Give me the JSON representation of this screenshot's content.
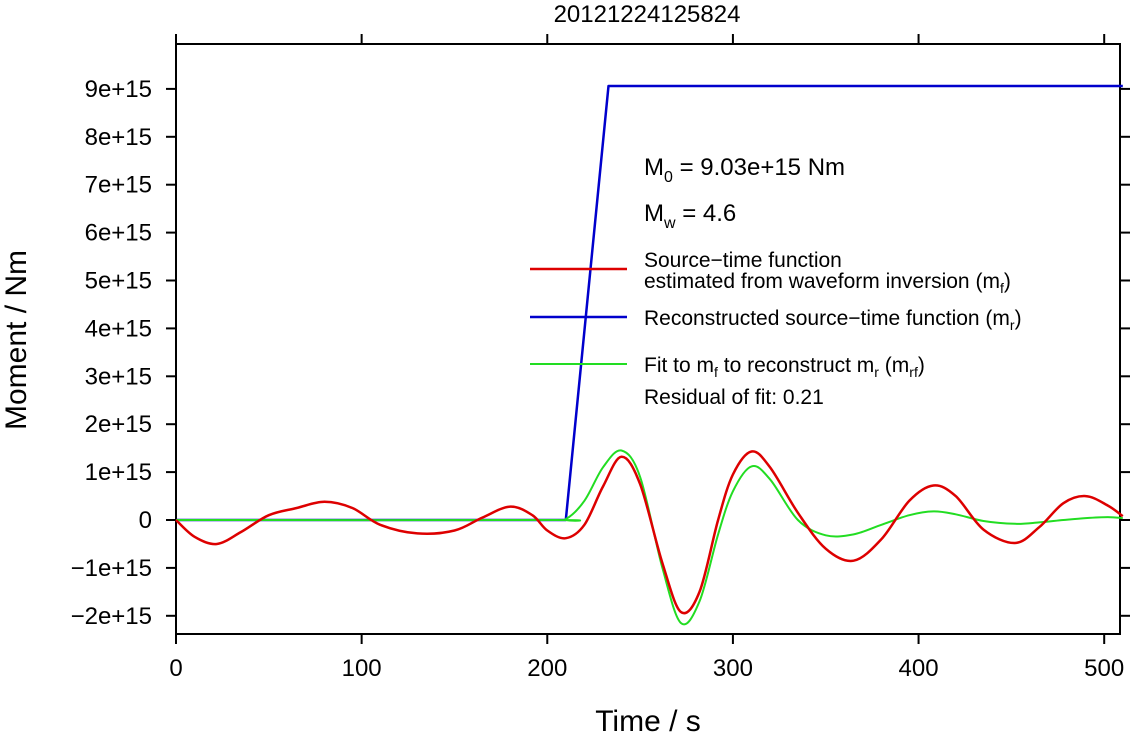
{
  "chart_data": {
    "type": "line",
    "title": "20121224125824",
    "xlabel": "Time / s",
    "ylabel": "Moment / Nm",
    "xlim": [
      0,
      510
    ],
    "ylim": [
      -2400000000000000.0,
      1e+16
    ],
    "x_ticks": [
      0,
      100,
      200,
      300,
      400,
      500
    ],
    "x_tick_labels": [
      "0",
      "100",
      "200",
      "300",
      "400",
      "500"
    ],
    "y_ticks": [
      -2000000000000000.0,
      -1000000000000000.0,
      0,
      1000000000000000.0,
      2000000000000000.0,
      3000000000000000.0,
      4000000000000000.0,
      5000000000000000.0,
      6000000000000000.0,
      7000000000000000.0,
      8000000000000000.0,
      9000000000000000.0
    ],
    "y_tick_labels": [
      "−2e+15",
      "−1e+15",
      "0",
      "1e+15",
      "2e+15",
      "3e+15",
      "4e+15",
      "5e+15",
      "6e+15",
      "7e+15",
      "8e+15",
      "9e+15"
    ],
    "grid": false,
    "legend_position": "right",
    "annotations": {
      "m0": {
        "prefix": "M",
        "sub": "0",
        "suffix": " = 9.03e+15 Nm"
      },
      "mw": {
        "prefix": "M",
        "sub": "w",
        "suffix": " = 4.6"
      },
      "residual": "Residual of fit: 0.21"
    },
    "legend": [
      {
        "color": "#dd0000",
        "line1": "Source−time function",
        "line2_prefix": "estimated from waveform inversion (m",
        "line2_sub": "f",
        "line2_suffix": ")"
      },
      {
        "color": "#0000cc",
        "line1_prefix": "Reconstructed source−time function (m",
        "line1_sub": "r",
        "line1_suffix": ")"
      },
      {
        "color": "#22dd22",
        "t1": "Fit to m",
        "s1": "f",
        "t2": " to reconstruct m",
        "s2": "r",
        "t3": " (m",
        "s3": "rf",
        "t4": ")"
      }
    ],
    "series": [
      {
        "key": "mf",
        "color": "#dd0000",
        "x": [
          0,
          10,
          22,
          35,
          50,
          65,
          80,
          95,
          110,
          130,
          150,
          165,
          180,
          192,
          200,
          210,
          220,
          230,
          240,
          250,
          262,
          272,
          282,
          292,
          300,
          310,
          320,
          335,
          350,
          365,
          380,
          395,
          408,
          420,
          435,
          452,
          465,
          478,
          490,
          502,
          510
        ],
        "values": [
          0,
          -350000000000000.0,
          -500000000000000.0,
          -250000000000000.0,
          100000000000000.0,
          250000000000000.0,
          380000000000000.0,
          250000000000000.0,
          -100000000000000.0,
          -280000000000000.0,
          -220000000000000.0,
          50000000000000.0,
          280000000000000.0,
          100000000000000.0,
          -220000000000000.0,
          -380000000000000.0,
          -100000000000000.0,
          700000000000000.0,
          1320000000000000.0,
          750000000000000.0,
          -900000000000000.0,
          -1920000000000000.0,
          -1500000000000000.0,
          0.0,
          950000000000000.0,
          1430000000000000.0,
          1100000000000000.0,
          150000000000000.0,
          -600000000000000.0,
          -850000000000000.0,
          -400000000000000.0,
          400000000000000.0,
          720000000000000.0,
          500000000000000.0,
          -200000000000000.0,
          -480000000000000.0,
          -150000000000000.0,
          350000000000000.0,
          500000000000000.0,
          300000000000000.0,
          80000000000000.0
        ]
      },
      {
        "key": "mr",
        "color": "#0000cc",
        "x": [
          0,
          210,
          233,
          510
        ],
        "values": [
          0,
          0,
          9060000000000000.0,
          9060000000000000.0
        ]
      },
      {
        "key": "mrf",
        "color": "#22dd22",
        "x": [
          0,
          200,
          210,
          220,
          230,
          240,
          250,
          262,
          272,
          282,
          292,
          300,
          310,
          320,
          335,
          350,
          365,
          380,
          395,
          408,
          420,
          435,
          452,
          465,
          478,
          490,
          502,
          510
        ],
        "values": [
          0,
          0,
          20000000000000.0,
          400000000000000.0,
          1100000000000000.0,
          1450000000000000.0,
          900000000000000.0,
          -1000000000000000.0,
          -2150000000000000.0,
          -1700000000000000.0,
          -300000000000000.0,
          600000000000000.0,
          1120000000000000.0,
          850000000000000.0,
          0.0,
          -320000000000000.0,
          -300000000000000.0,
          -100000000000000.0,
          100000000000000.0,
          180000000000000.0,
          120000000000000.0,
          -20000000000000.0,
          -80000000000000.0,
          -50000000000000.0,
          0.0,
          40000000000000.0,
          60000000000000.0,
          40000000000000.0
        ]
      }
    ]
  }
}
